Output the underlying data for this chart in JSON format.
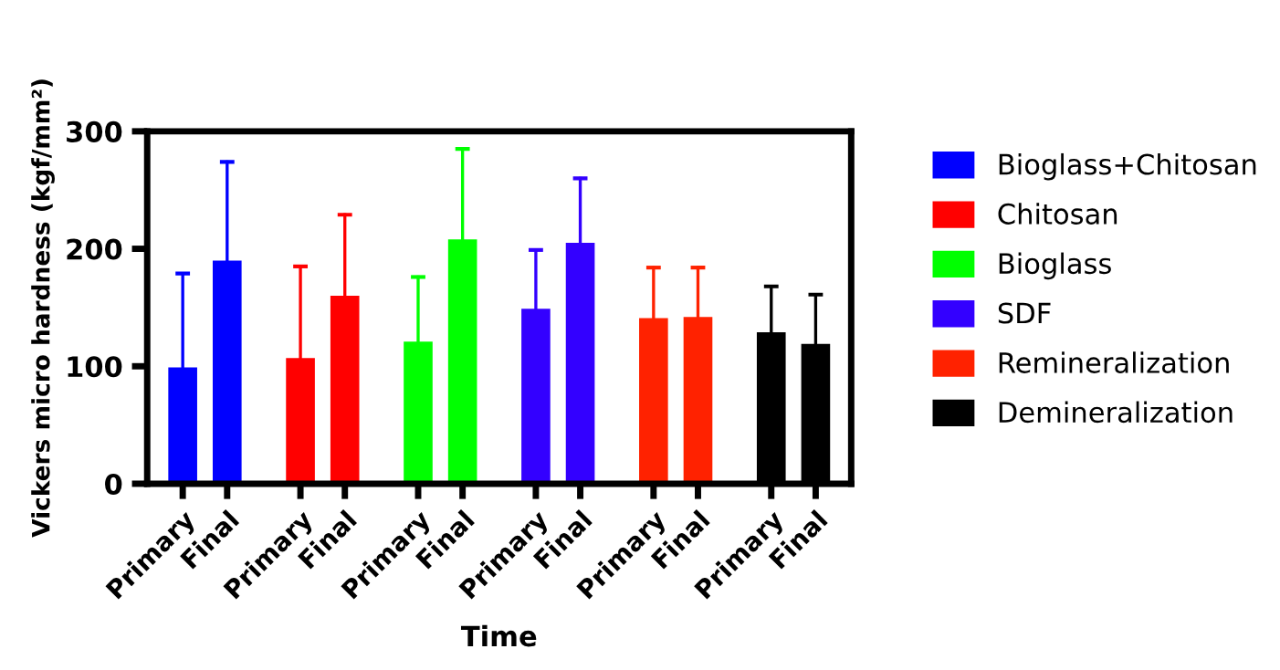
{
  "chart_data": {
    "type": "bar",
    "xlabel": "Time",
    "ylabel": "Vickers micro hardness (kgf/mm²)",
    "categories": [
      "Primary",
      "Final",
      "Primary",
      "Final",
      "Primary",
      "Final",
      "Primary",
      "Final",
      "Primary",
      "Final",
      "Primary",
      "Final"
    ],
    "series": [
      {
        "name": "Bioglass+Chitosan",
        "color": "#0000ff",
        "values": [
          99,
          190,
          null,
          null,
          null,
          null,
          null,
          null,
          null,
          null,
          null,
          null
        ],
        "errors": [
          [
            99,
            179
          ],
          [
            190,
            274
          ],
          null,
          null,
          null,
          null,
          null,
          null,
          null,
          null,
          null,
          null
        ]
      },
      {
        "name": "Chitosan",
        "color": "#ff0000",
        "values": [
          null,
          null,
          107,
          160,
          null,
          null,
          null,
          null,
          null,
          null,
          null,
          null
        ],
        "errors": [
          null,
          null,
          [
            107,
            185
          ],
          [
            160,
            229
          ],
          null,
          null,
          null,
          null,
          null,
          null,
          null,
          null
        ]
      },
      {
        "name": "Bioglass",
        "color": "#00ff00",
        "values": [
          null,
          null,
          null,
          null,
          121,
          208,
          null,
          null,
          null,
          null,
          null,
          null
        ],
        "errors": [
          null,
          null,
          null,
          null,
          [
            121,
            176
          ],
          [
            208,
            285
          ],
          null,
          null,
          null,
          null,
          null,
          null
        ]
      },
      {
        "name": "SDF",
        "color": "#3300ff",
        "values": [
          null,
          null,
          null,
          null,
          null,
          null,
          149,
          205,
          null,
          null,
          null,
          null
        ],
        "errors": [
          null,
          null,
          null,
          null,
          null,
          null,
          [
            149,
            199
          ],
          [
            205,
            260
          ],
          null,
          null,
          null,
          null
        ]
      },
      {
        "name": "Remineralization",
        "color": "#ff2200",
        "values": [
          null,
          null,
          null,
          null,
          null,
          null,
          null,
          null,
          141,
          142,
          null,
          null
        ],
        "errors": [
          null,
          null,
          null,
          null,
          null,
          null,
          null,
          null,
          [
            141,
            184
          ],
          [
            142,
            184
          ],
          null,
          null
        ]
      },
      {
        "name": "Demineralization",
        "color": "#000000",
        "values": [
          null,
          null,
          null,
          null,
          null,
          null,
          null,
          null,
          null,
          null,
          129,
          119
        ],
        "errors": [
          null,
          null,
          null,
          null,
          null,
          null,
          null,
          null,
          null,
          null,
          [
            129,
            168
          ],
          [
            119,
            161
          ]
        ]
      }
    ],
    "ylim": [
      0,
      300
    ],
    "yticks": [
      0,
      100,
      200,
      300
    ],
    "grid": false,
    "legend": "right"
  }
}
